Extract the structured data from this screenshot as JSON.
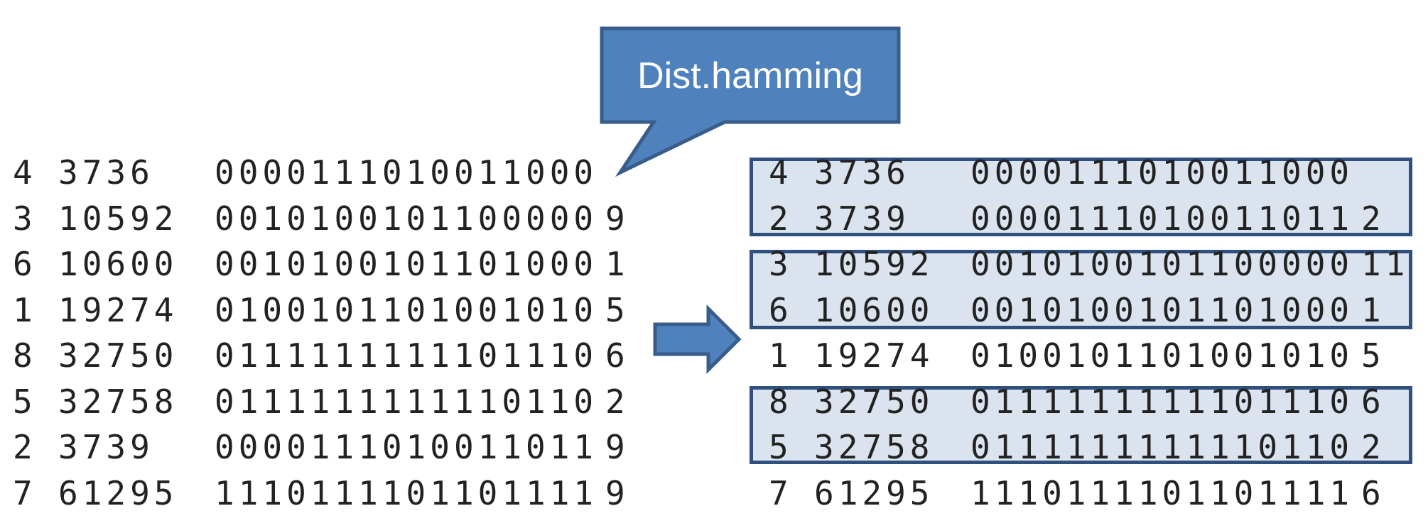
{
  "callout": {
    "label": "Dist.hamming"
  },
  "colors": {
    "callout_fill": "#4f81bd",
    "callout_border": "#385d8a",
    "group_fill": "#dbe3ef",
    "group_border": "#2f4f7f",
    "text": "#222222"
  },
  "icons": {
    "arrow": "right-arrow-icon"
  },
  "left_table": {
    "rows": [
      {
        "id": "4",
        "value": "3736",
        "bits": "0000111010011000",
        "dist": ""
      },
      {
        "id": "3",
        "value": "10592",
        "bits": "0010100101100000",
        "dist": "9"
      },
      {
        "id": "6",
        "value": "10600",
        "bits": "0010100101101000",
        "dist": "1"
      },
      {
        "id": "1",
        "value": "19274",
        "bits": "0100101101001010",
        "dist": "5"
      },
      {
        "id": "8",
        "value": "32750",
        "bits": "0111111111101110",
        "dist": "6"
      },
      {
        "id": "5",
        "value": "32758",
        "bits": "0111111111110110",
        "dist": "2"
      },
      {
        "id": "2",
        "value": "3739",
        "bits": "0000111010011011",
        "dist": "9"
      },
      {
        "id": "7",
        "value": "61295",
        "bits": "1110111101101111",
        "dist": "9"
      }
    ]
  },
  "right_table": {
    "rows": [
      {
        "id": "4",
        "value": "3736",
        "bits": "0000111010011000",
        "dist": ""
      },
      {
        "id": "2",
        "value": "3739",
        "bits": "0000111010011011",
        "dist": "2"
      },
      {
        "id": "3",
        "value": "10592",
        "bits": "0010100101100000",
        "dist": "11"
      },
      {
        "id": "6",
        "value": "10600",
        "bits": "0010100101101000",
        "dist": "1"
      },
      {
        "id": "1",
        "value": "19274",
        "bits": "0100101101001010",
        "dist": "5"
      },
      {
        "id": "8",
        "value": "32750",
        "bits": "0111111111101110",
        "dist": "6"
      },
      {
        "id": "5",
        "value": "32758",
        "bits": "0111111111110110",
        "dist": "2"
      },
      {
        "id": "7",
        "value": "61295",
        "bits": "1110111101101111",
        "dist": "6"
      }
    ]
  }
}
